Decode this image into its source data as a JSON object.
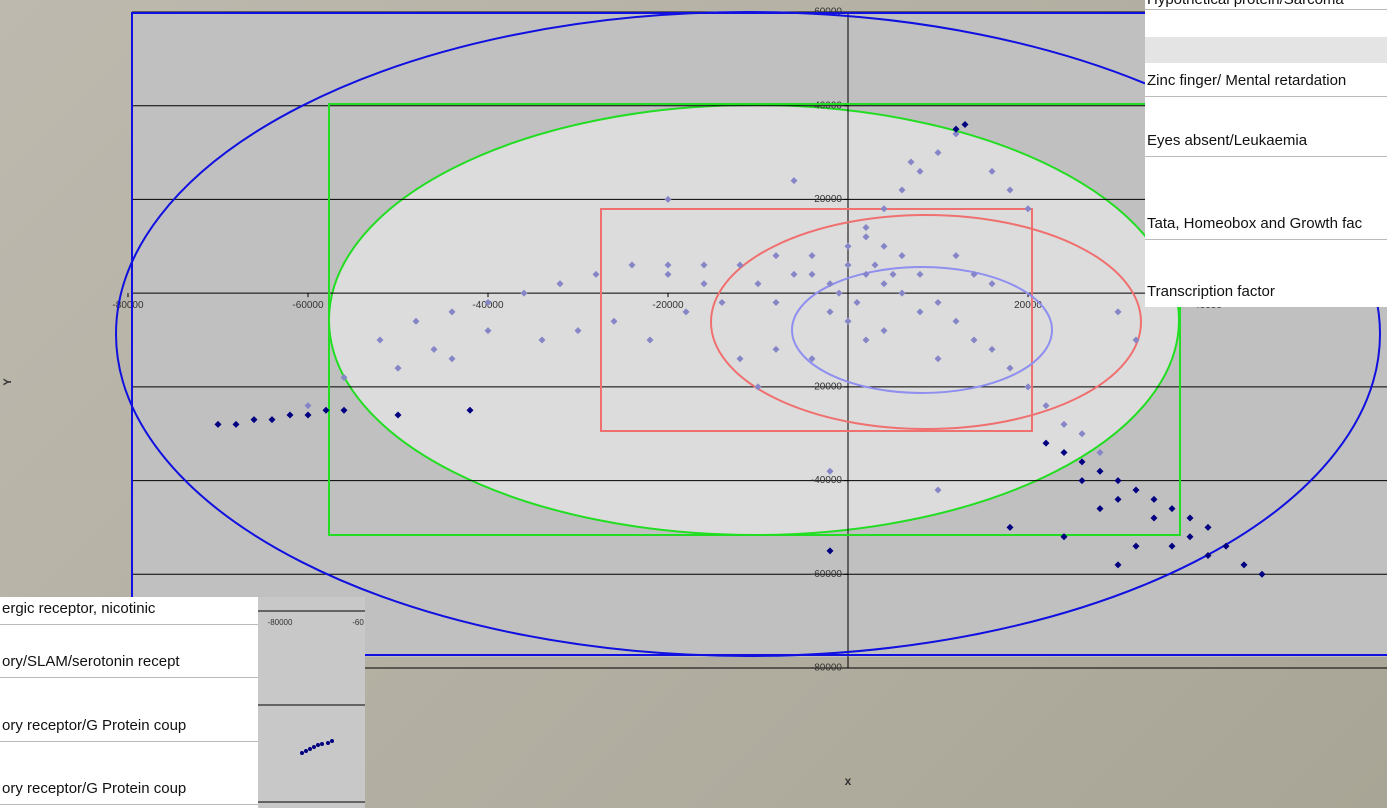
{
  "chart_data": {
    "type": "scatter",
    "xlabel": "x",
    "ylabel": "Y",
    "xlim": [
      -80000,
      60000
    ],
    "ylim": [
      -80000,
      60000
    ],
    "xticks": [
      -80000,
      -60000,
      -40000,
      -20000,
      20000,
      40000
    ],
    "yticks": [
      60000,
      40000,
      20000,
      -20000,
      -40000,
      -60000,
      -80000
    ],
    "grid": true,
    "series": [
      {
        "color": "#8585c8",
        "x": [
          -52000,
          -48000,
          -44000,
          -40000,
          -36000,
          -32000,
          -28000,
          -24000,
          -20000,
          -16000,
          -12000,
          -8000,
          -4000,
          0,
          2000,
          4000,
          6000,
          -30000,
          -26000,
          -22000,
          -18000,
          -14000,
          -10000,
          -6000,
          -2000,
          2000,
          4000,
          6000,
          8000,
          10000,
          12000,
          14000,
          16000,
          18000,
          20000,
          22000,
          24000,
          26000,
          28000,
          -60000,
          -56000,
          -50000,
          -46000,
          -40000,
          -34000,
          -44000,
          2000,
          4000,
          6000,
          8000,
          10000,
          12000,
          7000,
          -6000,
          -20000,
          16000,
          18000,
          20000,
          -2000,
          0,
          2000,
          4000,
          -4000,
          -8000,
          10000,
          -10000,
          -12000,
          30000,
          32000,
          -2000,
          10000,
          -20000,
          -16000,
          -8000,
          -4000,
          0,
          3000,
          5000,
          1000,
          -1000,
          8000,
          12000,
          14000,
          16000
        ],
        "values": [
          -10000,
          -6000,
          -4000,
          -2000,
          0,
          2000,
          4000,
          6000,
          4000,
          6000,
          6000,
          8000,
          8000,
          10000,
          12000,
          10000,
          8000,
          -8000,
          -6000,
          -10000,
          -4000,
          -2000,
          2000,
          4000,
          2000,
          4000,
          2000,
          0,
          -4000,
          -2000,
          -6000,
          -10000,
          -12000,
          -16000,
          -20000,
          -24000,
          -28000,
          -30000,
          -34000,
          -24000,
          -18000,
          -16000,
          -12000,
          -8000,
          -10000,
          -14000,
          14000,
          18000,
          22000,
          26000,
          30000,
          34000,
          28000,
          24000,
          20000,
          26000,
          22000,
          18000,
          -4000,
          -6000,
          -10000,
          -8000,
          -14000,
          -12000,
          -14000,
          -20000,
          -14000,
          -4000,
          -10000,
          -38000,
          -42000,
          6000,
          2000,
          -2000,
          4000,
          6000,
          6000,
          4000,
          -2000,
          0,
          4000,
          8000,
          4000,
          2000
        ]
      },
      {
        "color": "#000080",
        "x": [
          -70000,
          -68000,
          -66000,
          -64000,
          -62000,
          -60000,
          -58000,
          -56000,
          -50000,
          -42000,
          12000,
          13000,
          22000,
          24000,
          26000,
          28000,
          30000,
          32000,
          34000,
          36000,
          38000,
          40000,
          30000,
          26000,
          34000,
          28000,
          24000,
          32000,
          36000,
          40000,
          44000,
          46000,
          -2000,
          18000,
          42000,
          38000,
          30000
        ],
        "values": [
          -28000,
          -28000,
          -27000,
          -27000,
          -26000,
          -26000,
          -25000,
          -25000,
          -26000,
          -25000,
          35000,
          36000,
          -32000,
          -34000,
          -36000,
          -38000,
          -40000,
          -42000,
          -44000,
          -46000,
          -48000,
          -50000,
          -44000,
          -40000,
          -48000,
          -46000,
          -52000,
          -54000,
          -54000,
          -56000,
          -58000,
          -60000,
          -55000,
          -50000,
          -54000,
          -52000,
          -58000
        ]
      }
    ]
  },
  "right_table": {
    "rows": [
      "Hypothetical protein/Sarcoma",
      "Zinc finger/ Mental retardation",
      "Eyes absent/Leukaemia",
      "Tata, Homeobox and Growth fac",
      "Transcription factor"
    ]
  },
  "left_table": {
    "rows": [
      "ergic receptor, nicotinic",
      "ory/SLAM/serotonin recept",
      "ory receptor/G Protein coup",
      "ory receptor/G Protein coup"
    ]
  },
  "inset": {
    "tick_labels": [
      "-80000",
      "-60"
    ]
  }
}
